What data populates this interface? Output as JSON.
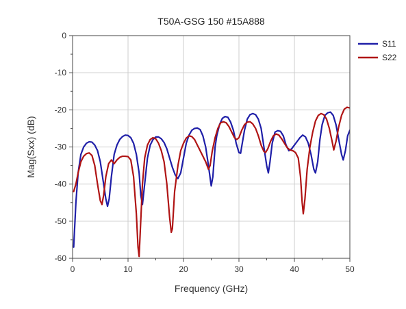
{
  "chart_data": {
    "type": "line",
    "title": "T50A-GSG 150 #15A888",
    "xlabel": "Frequency (GHz)",
    "ylabel": "Mag(Sxx) (dB)",
    "xlim": [
      0,
      50
    ],
    "ylim": [
      -60,
      0
    ],
    "xticks": [
      0,
      10,
      20,
      30,
      40,
      50
    ],
    "yticks": [
      0,
      -10,
      -20,
      -30,
      -40,
      -50,
      -60
    ],
    "grid": true,
    "legend_position": "top-right-outside",
    "series": [
      {
        "name": "S11",
        "color": "#1f1fa8",
        "points": [
          [
            0.2,
            -57
          ],
          [
            0.6,
            -45
          ],
          [
            1,
            -37
          ],
          [
            1.5,
            -32
          ],
          [
            2,
            -30
          ],
          [
            2.5,
            -29
          ],
          [
            3,
            -28.6
          ],
          [
            3.5,
            -28.7
          ],
          [
            4,
            -29.5
          ],
          [
            4.5,
            -31
          ],
          [
            5,
            -34
          ],
          [
            5.5,
            -39
          ],
          [
            6,
            -44
          ],
          [
            6.3,
            -46
          ],
          [
            6.6,
            -44
          ],
          [
            7,
            -38
          ],
          [
            7.5,
            -32
          ],
          [
            8,
            -29.5
          ],
          [
            8.5,
            -28
          ],
          [
            9,
            -27.2
          ],
          [
            9.5,
            -26.8
          ],
          [
            10,
            -26.9
          ],
          [
            10.5,
            -27.5
          ],
          [
            11,
            -29
          ],
          [
            11.5,
            -32
          ],
          [
            12,
            -37
          ],
          [
            12.3,
            -43
          ],
          [
            12.6,
            -45.5
          ],
          [
            13,
            -40
          ],
          [
            13.5,
            -33
          ],
          [
            14,
            -29.5
          ],
          [
            14.5,
            -28
          ],
          [
            15,
            -27.3
          ],
          [
            15.5,
            -27.3
          ],
          [
            16,
            -27.8
          ],
          [
            16.5,
            -28.8
          ],
          [
            17,
            -30.5
          ],
          [
            17.5,
            -33
          ],
          [
            18,
            -35.5
          ],
          [
            18.5,
            -37.5
          ],
          [
            19,
            -38.5
          ],
          [
            19.5,
            -37
          ],
          [
            20,
            -33
          ],
          [
            20.5,
            -29
          ],
          [
            21,
            -26.8
          ],
          [
            21.5,
            -25.5
          ],
          [
            22,
            -25
          ],
          [
            22.5,
            -24.9
          ],
          [
            23,
            -25.3
          ],
          [
            23.5,
            -27
          ],
          [
            24,
            -30
          ],
          [
            24.5,
            -35
          ],
          [
            25,
            -40.5
          ],
          [
            25.3,
            -38
          ],
          [
            25.7,
            -30
          ],
          [
            26,
            -27
          ],
          [
            26.5,
            -24
          ],
          [
            27,
            -22.3
          ],
          [
            27.5,
            -21.8
          ],
          [
            28,
            -22
          ],
          [
            28.5,
            -23.3
          ],
          [
            29,
            -25.5
          ],
          [
            29.5,
            -29
          ],
          [
            30,
            -31.5
          ],
          [
            30.3,
            -31.7
          ],
          [
            30.6,
            -29
          ],
          [
            31,
            -25.5
          ],
          [
            31.5,
            -22.5
          ],
          [
            32,
            -21.3
          ],
          [
            32.5,
            -21
          ],
          [
            33,
            -21.3
          ],
          [
            33.5,
            -22.5
          ],
          [
            34,
            -25
          ],
          [
            34.5,
            -30
          ],
          [
            35,
            -35
          ],
          [
            35.3,
            -37
          ],
          [
            35.6,
            -34
          ],
          [
            36,
            -29
          ],
          [
            36.5,
            -26
          ],
          [
            37,
            -25.6
          ],
          [
            37.5,
            -25.8
          ],
          [
            38,
            -27
          ],
          [
            38.5,
            -29.5
          ],
          [
            39,
            -31
          ],
          [
            39.5,
            -30.5
          ],
          [
            40,
            -29.5
          ],
          [
            40.5,
            -28.5
          ],
          [
            41,
            -27.5
          ],
          [
            41.5,
            -26.8
          ],
          [
            42,
            -27.3
          ],
          [
            42.5,
            -29
          ],
          [
            43,
            -32
          ],
          [
            43.5,
            -36
          ],
          [
            43.8,
            -37
          ],
          [
            44.2,
            -34
          ],
          [
            44.6,
            -28
          ],
          [
            45,
            -24
          ],
          [
            45.5,
            -21.5
          ],
          [
            46,
            -20.8
          ],
          [
            46.5,
            -20.6
          ],
          [
            47,
            -21.5
          ],
          [
            47.5,
            -24
          ],
          [
            48,
            -28
          ],
          [
            48.5,
            -32
          ],
          [
            48.8,
            -33.5
          ],
          [
            49.2,
            -31
          ],
          [
            49.6,
            -27
          ],
          [
            50,
            -25.5
          ]
        ]
      },
      {
        "name": "S22",
        "color": "#b01414",
        "points": [
          [
            0.2,
            -42
          ],
          [
            0.6,
            -40
          ],
          [
            1,
            -37
          ],
          [
            1.5,
            -34
          ],
          [
            2,
            -32.5
          ],
          [
            2.5,
            -31.8
          ],
          [
            3,
            -31.6
          ],
          [
            3.5,
            -32.3
          ],
          [
            4,
            -35
          ],
          [
            4.5,
            -40
          ],
          [
            5,
            -44.5
          ],
          [
            5.3,
            -45.5
          ],
          [
            5.6,
            -43
          ],
          [
            6,
            -38
          ],
          [
            6.5,
            -34.5
          ],
          [
            7,
            -33.5
          ],
          [
            7.5,
            -34.5
          ],
          [
            8,
            -33.5
          ],
          [
            8.5,
            -32.8
          ],
          [
            9,
            -32.5
          ],
          [
            9.5,
            -32.5
          ],
          [
            10,
            -32.6
          ],
          [
            10.5,
            -33.5
          ],
          [
            11,
            -38
          ],
          [
            11.5,
            -48
          ],
          [
            11.8,
            -57
          ],
          [
            12,
            -59.5
          ],
          [
            12.2,
            -53
          ],
          [
            12.6,
            -40
          ],
          [
            13,
            -33
          ],
          [
            13.5,
            -29.5
          ],
          [
            14,
            -28
          ],
          [
            14.5,
            -27.5
          ],
          [
            15,
            -27.8
          ],
          [
            15.5,
            -29
          ],
          [
            16,
            -31
          ],
          [
            16.5,
            -34
          ],
          [
            17,
            -40
          ],
          [
            17.5,
            -49
          ],
          [
            17.8,
            -53
          ],
          [
            18,
            -52
          ],
          [
            18.4,
            -42
          ],
          [
            19,
            -35
          ],
          [
            19.5,
            -31
          ],
          [
            20,
            -29
          ],
          [
            20.5,
            -27.6
          ],
          [
            21,
            -27
          ],
          [
            21.5,
            -27.2
          ],
          [
            22,
            -28
          ],
          [
            22.5,
            -29.5
          ],
          [
            23,
            -31
          ],
          [
            23.5,
            -32.5
          ],
          [
            24,
            -34
          ],
          [
            24.5,
            -36
          ],
          [
            24.8,
            -35
          ],
          [
            25.2,
            -31
          ],
          [
            25.7,
            -27.5
          ],
          [
            26.2,
            -25
          ],
          [
            26.7,
            -23.5
          ],
          [
            27.2,
            -23.2
          ],
          [
            27.7,
            -23.5
          ],
          [
            28.2,
            -24.5
          ],
          [
            28.7,
            -26
          ],
          [
            29.2,
            -27.5
          ],
          [
            29.6,
            -28
          ],
          [
            30,
            -27.5
          ],
          [
            30.5,
            -25.5
          ],
          [
            31,
            -24
          ],
          [
            31.5,
            -23.3
          ],
          [
            32,
            -23.2
          ],
          [
            32.5,
            -23.8
          ],
          [
            33,
            -25
          ],
          [
            33.5,
            -27
          ],
          [
            34,
            -29.5
          ],
          [
            34.5,
            -31.2
          ],
          [
            34.8,
            -31.5
          ],
          [
            35.2,
            -30.5
          ],
          [
            35.7,
            -28.5
          ],
          [
            36.2,
            -27
          ],
          [
            36.7,
            -26.5
          ],
          [
            37.2,
            -26.8
          ],
          [
            37.7,
            -27.8
          ],
          [
            38.2,
            -29
          ],
          [
            38.7,
            -30.2
          ],
          [
            39.2,
            -30.8
          ],
          [
            39.7,
            -31
          ],
          [
            40.2,
            -31.5
          ],
          [
            40.7,
            -33
          ],
          [
            41.1,
            -38
          ],
          [
            41.4,
            -45
          ],
          [
            41.6,
            -48
          ],
          [
            41.9,
            -44
          ],
          [
            42.3,
            -36
          ],
          [
            42.8,
            -30
          ],
          [
            43.3,
            -26
          ],
          [
            43.8,
            -23
          ],
          [
            44.3,
            -21.5
          ],
          [
            44.8,
            -21
          ],
          [
            45.3,
            -21.3
          ],
          [
            45.8,
            -22.5
          ],
          [
            46.3,
            -25
          ],
          [
            46.8,
            -28.5
          ],
          [
            47.1,
            -30.8
          ],
          [
            47.5,
            -28.5
          ],
          [
            48,
            -24.5
          ],
          [
            48.5,
            -21.5
          ],
          [
            49,
            -19.8
          ],
          [
            49.5,
            -19.3
          ],
          [
            50,
            -19.5
          ]
        ]
      }
    ]
  }
}
